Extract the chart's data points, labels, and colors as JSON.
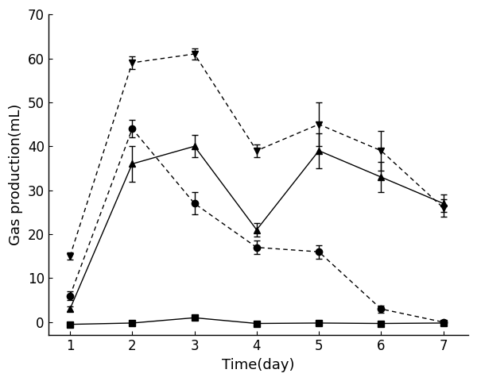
{
  "x": [
    1,
    2,
    3,
    4,
    5,
    6,
    7
  ],
  "series": [
    {
      "label": "circle_dashed",
      "y": [
        6,
        44,
        27,
        17,
        16,
        3,
        0
      ],
      "yerr": [
        1.0,
        2.0,
        2.5,
        1.5,
        1.5,
        0.8,
        0.3
      ],
      "marker": "o",
      "linestyle": "--",
      "color": "#000000",
      "markersize": 6,
      "markerfacecolor": "#000000",
      "linewidth": 1.0,
      "dashes": [
        4,
        3
      ]
    },
    {
      "label": "triangle_up_solid",
      "y": [
        3,
        36,
        40,
        21,
        39,
        33,
        27
      ],
      "yerr": [
        0.5,
        4.0,
        2.5,
        1.5,
        4.0,
        3.5,
        2.0
      ],
      "marker": "^",
      "linestyle": "-",
      "color": "#000000",
      "markersize": 6,
      "markerfacecolor": "#000000",
      "linewidth": 1.0,
      "dashes": []
    },
    {
      "label": "triangle_down_dashed",
      "y": [
        15,
        59,
        61,
        39,
        45,
        39,
        26
      ],
      "yerr": [
        0.8,
        1.5,
        1.2,
        1.5,
        5.0,
        4.5,
        2.0
      ],
      "marker": "v",
      "linestyle": "--",
      "color": "#000000",
      "markersize": 6,
      "markerfacecolor": "#000000",
      "linewidth": 1.0,
      "dashes": [
        4,
        3
      ]
    },
    {
      "label": "square_solid",
      "y": [
        -0.5,
        -0.2,
        1.0,
        -0.3,
        -0.2,
        -0.3,
        -0.2
      ],
      "yerr": [
        0.1,
        0.1,
        0.2,
        0.1,
        0.1,
        0.1,
        0.1
      ],
      "marker": "s",
      "linestyle": "-",
      "color": "#000000",
      "markersize": 6,
      "markerfacecolor": "#000000",
      "linewidth": 1.0,
      "dashes": []
    }
  ],
  "xlabel": "Time(day)",
  "ylabel": "Gas production(mL)",
  "ylim": [
    -3,
    70
  ],
  "xlim": [
    0.65,
    7.4
  ],
  "yticks": [
    0,
    10,
    20,
    30,
    40,
    50,
    60,
    70
  ],
  "xticks": [
    1,
    2,
    3,
    4,
    5,
    6,
    7
  ],
  "capsize": 3,
  "elinewidth": 1.0,
  "xlabel_fontsize": 13,
  "ylabel_fontsize": 13,
  "tick_labelsize": 12
}
